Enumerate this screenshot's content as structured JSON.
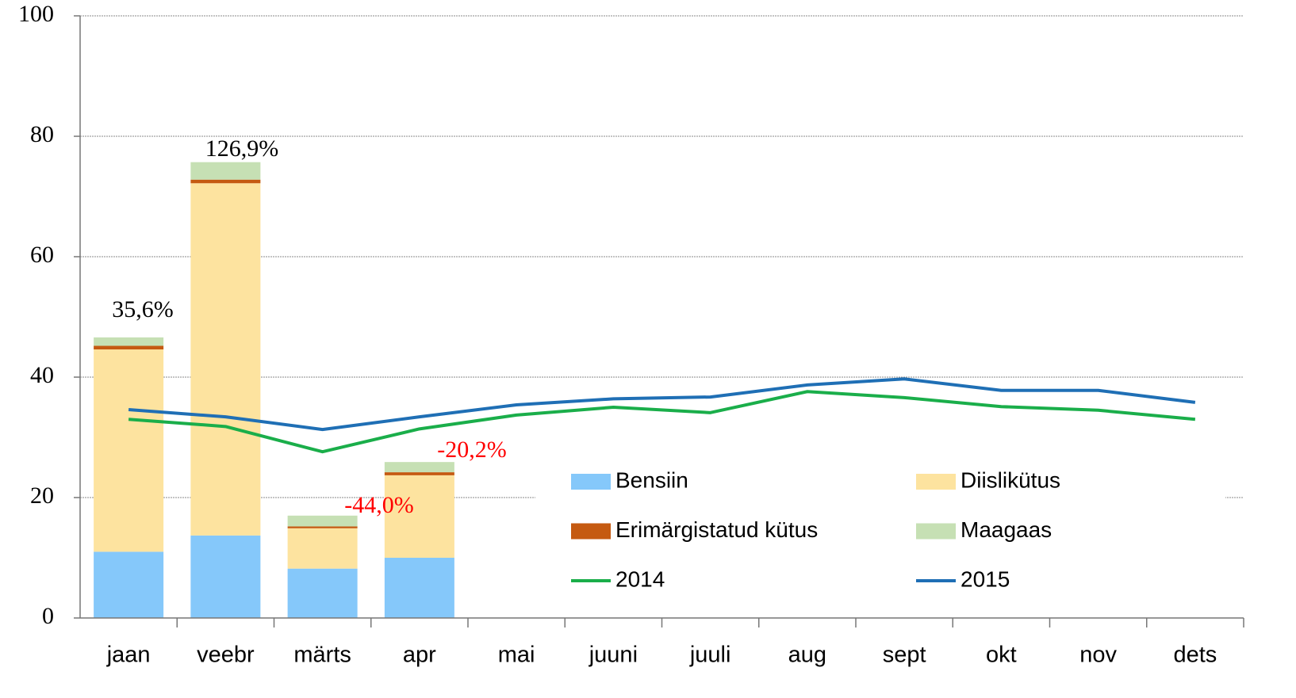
{
  "chart_data": {
    "type": "bar",
    "categories": [
      "jaan",
      "veebr",
      "märts",
      "apr",
      "mai",
      "juuni",
      "juuli",
      "aug",
      "sept",
      "okt",
      "nov",
      "dets"
    ],
    "series": [
      {
        "name": "Bensiin",
        "type": "bar",
        "color": "#85c8fa",
        "values": [
          11.0,
          13.7,
          8.2,
          10.0,
          null,
          null,
          null,
          null,
          null,
          null,
          null,
          null
        ]
      },
      {
        "name": "Diislikütus",
        "type": "bar",
        "color": "#fde39f",
        "values": [
          33.6,
          58.5,
          6.7,
          13.7,
          null,
          null,
          null,
          null,
          null,
          null,
          null,
          null
        ]
      },
      {
        "name": "Erimärgistatud kütus",
        "type": "bar",
        "color": "#c55a11",
        "values": [
          0.6,
          0.6,
          0.3,
          0.5,
          null,
          null,
          null,
          null,
          null,
          null,
          null,
          null
        ]
      },
      {
        "name": "Maagaas",
        "type": "bar",
        "color": "#c6e0b4",
        "values": [
          1.4,
          2.9,
          1.8,
          1.7,
          null,
          null,
          null,
          null,
          null,
          null,
          null,
          null
        ]
      },
      {
        "name": "2014",
        "type": "line",
        "color": "#1aae4a",
        "values": [
          33.0,
          31.8,
          27.6,
          31.4,
          33.7,
          35.0,
          34.1,
          37.6,
          36.6,
          35.1,
          34.5,
          33.0
        ]
      },
      {
        "name": "2015",
        "type": "line",
        "color": "#1f6fb5",
        "values": [
          34.6,
          33.4,
          31.3,
          33.4,
          35.4,
          36.4,
          36.7,
          38.7,
          39.7,
          37.8,
          37.8,
          35.8
        ]
      }
    ],
    "annotations": [
      {
        "text": "35,6%",
        "color": "#000000"
      },
      {
        "text": "126,9%",
        "color": "#000000"
      },
      {
        "text": "-44,0%",
        "color": "#ff0000"
      },
      {
        "text": "-20,2%",
        "color": "#ff0000"
      }
    ],
    "ylim": [
      0,
      100
    ],
    "yticks": [
      0,
      20,
      40,
      60,
      80,
      100
    ],
    "grid": true,
    "legend": "lower right"
  }
}
